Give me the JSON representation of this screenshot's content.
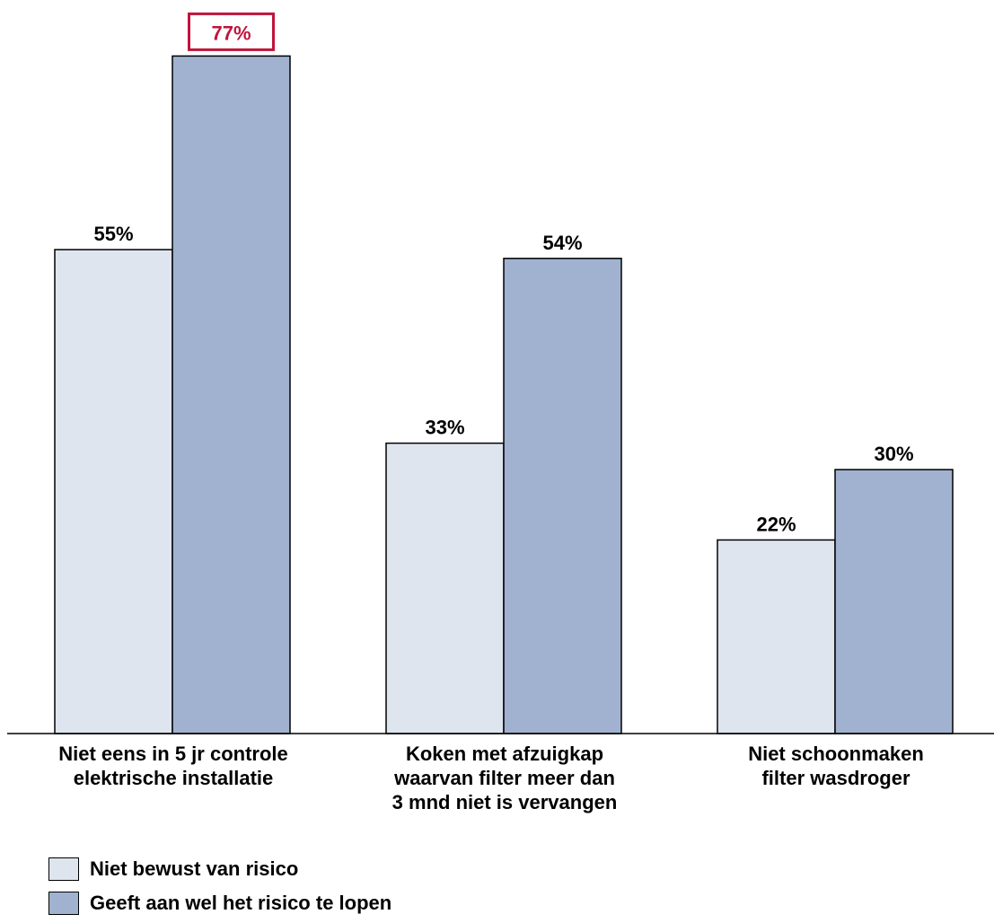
{
  "chart_data": {
    "type": "bar",
    "categories": [
      [
        "Niet eens in 5 jr controle",
        "elektrische installatie"
      ],
      [
        "Koken met afzuigkap",
        "waarvan filter meer dan",
        "3 mnd niet is vervangen"
      ],
      [
        "Niet schoonmaken",
        "filter wasdroger"
      ]
    ],
    "series": [
      {
        "name": "Niet bewust van risico",
        "values": [
          55,
          33,
          22
        ],
        "labels": [
          "55%",
          "33%",
          "22%"
        ],
        "color": "#dfe5ef"
      },
      {
        "name": "Geeft aan wel het risico te lopen",
        "values": [
          77,
          54,
          30
        ],
        "labels": [
          "77%",
          "54%",
          "30%"
        ],
        "color": "#a0b2cf"
      }
    ],
    "highlight": {
      "series": 1,
      "category": 0,
      "color": "#c0143c"
    },
    "ylim": [
      0,
      100
    ],
    "grid": false,
    "legend_position": "bottom-left"
  }
}
